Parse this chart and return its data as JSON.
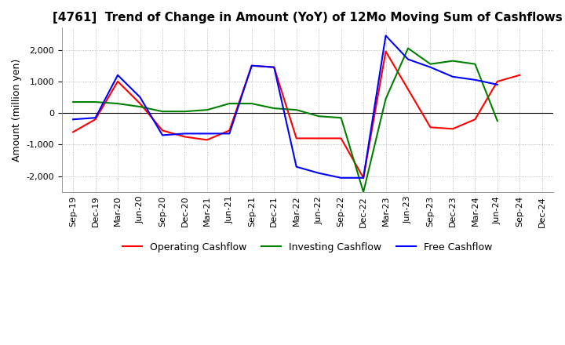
{
  "title": "[4761]  Trend of Change in Amount (YoY) of 12Mo Moving Sum of Cashflows",
  "ylabel": "Amount (million yen)",
  "background_color": "#ffffff",
  "grid_color": "#aaaaaa",
  "ylim": [
    -2500,
    2700
  ],
  "yticks": [
    -2000,
    -1000,
    0,
    1000,
    2000
  ],
  "x_labels": [
    "Sep-19",
    "Dec-19",
    "Mar-20",
    "Jun-20",
    "Sep-20",
    "Dec-20",
    "Mar-21",
    "Jun-21",
    "Sep-21",
    "Dec-21",
    "Mar-22",
    "Jun-22",
    "Sep-22",
    "Dec-22",
    "Mar-23",
    "Jun-23",
    "Sep-23",
    "Dec-23",
    "Mar-24",
    "Jun-24",
    "Sep-24",
    "Dec-24"
  ],
  "operating": [
    -600,
    -200,
    1000,
    300,
    -550,
    -750,
    -850,
    -550,
    1500,
    1450,
    -800,
    -800,
    -800,
    -2050,
    1950,
    750,
    -450,
    -500,
    -200,
    1000,
    1200,
    null
  ],
  "investing": [
    350,
    350,
    300,
    200,
    50,
    50,
    100,
    300,
    300,
    150,
    100,
    -100,
    -150,
    -2500,
    450,
    2050,
    1550,
    1650,
    1550,
    -250,
    null,
    null
  ],
  "free": [
    -200,
    -150,
    1200,
    500,
    -700,
    -650,
    -650,
    -650,
    1500,
    1450,
    -1700,
    -1900,
    -2050,
    -2050,
    2450,
    1700,
    1450,
    1150,
    1050,
    900,
    null,
    null
  ],
  "op_color": "#ff0000",
  "inv_color": "#008000",
  "free_color": "#0000ff",
  "legend_labels": [
    "Operating Cashflow",
    "Investing Cashflow",
    "Free Cashflow"
  ],
  "title_fontsize": 11,
  "axis_fontsize": 9,
  "tick_fontsize": 8
}
